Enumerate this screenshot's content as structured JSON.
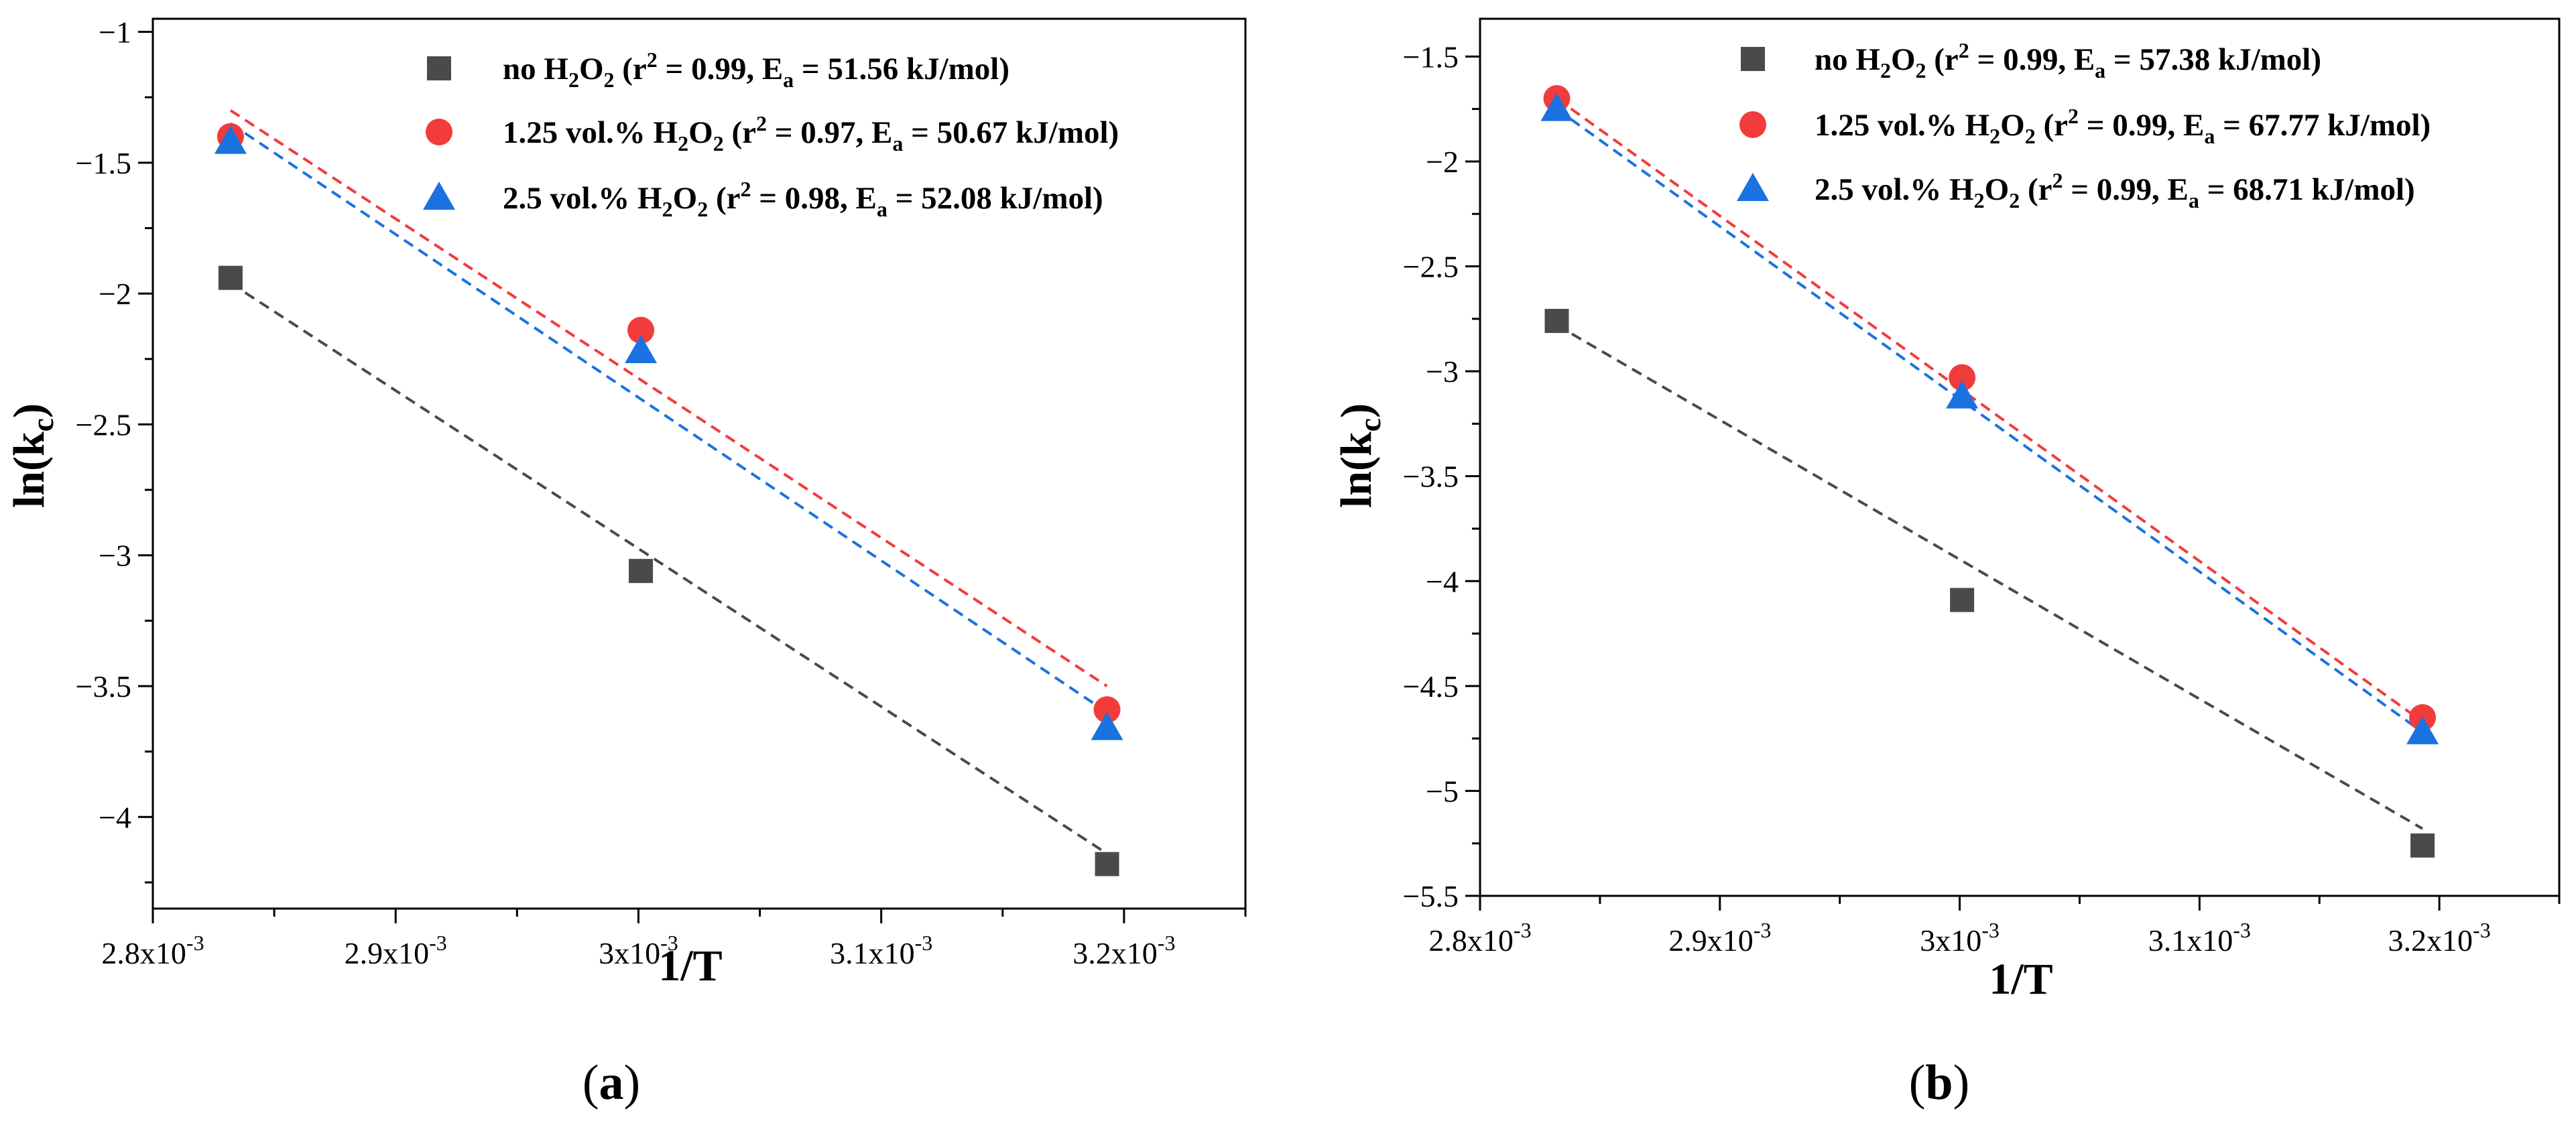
{
  "chart_data": [
    {
      "type": "scatter",
      "panel_label": "a",
      "xlabel": "1/T",
      "ylabel": "ln(kc)",
      "xlim": [
        0.0028,
        0.00325
      ],
      "ylim": [
        -4.35,
        -0.95
      ],
      "x_ticks": [
        0.0028,
        0.0029,
        0.003,
        0.0031,
        0.0032
      ],
      "x_tick_labels": [
        {
          "mantissa": "2.8x10",
          "exp": "-3"
        },
        {
          "mantissa": "2.9x10",
          "exp": "-3"
        },
        {
          "mantissa": "3x10",
          "exp": "-3"
        },
        {
          "mantissa": "3.1x10",
          "exp": "-3"
        },
        {
          "mantissa": "3.2x10",
          "exp": "-3"
        }
      ],
      "y_ticks": [
        -4,
        -3.5,
        -3,
        -2.5,
        -2,
        -1.5,
        -1
      ],
      "y_tick_labels": [
        "−4",
        "−3.5",
        "−3",
        "−2.5",
        "−2",
        "−1.5",
        "−1"
      ],
      "legend_position": "top-right",
      "series": [
        {
          "name": "no H2O2",
          "label": {
            "pre": "no H",
            "s1": "2",
            "mid": "O",
            "s2": "2",
            "r": " (r",
            "sup": "2",
            "eq": " = 0.99, E",
            "sub": "a",
            "post": " = 51.56 kJ/mol)"
          },
          "marker": "square",
          "color": "#4a4a4a",
          "x": [
            0.002832,
            0.003001,
            0.003193
          ],
          "y": [
            -1.94,
            -3.06,
            -4.18
          ],
          "fit": {
            "x": [
              0.002832,
              0.003193
            ],
            "y": [
              -1.96,
              -4.14
            ]
          }
        },
        {
          "name": "1.25 vol.% H2O2",
          "label": {
            "pre": "1.25 vol.% H",
            "s1": "2",
            "mid": "O",
            "s2": "2",
            "r": " (r",
            "sup": "2",
            "eq": " = 0.97, E",
            "sub": "a",
            "post": " = 50.67 kJ/mol)"
          },
          "marker": "circle",
          "color": "#f23b3b",
          "x": [
            0.002832,
            0.003001,
            0.003193
          ],
          "y": [
            -1.4,
            -2.14,
            -3.59
          ],
          "fit": {
            "x": [
              0.002832,
              0.003193
            ],
            "y": [
              -1.3,
              -3.5
            ]
          }
        },
        {
          "name": "2.5 vol.% H2O2",
          "label": {
            "pre": "2.5 vol.% H",
            "s1": "2",
            "mid": "O",
            "s2": "2",
            "r": " (r",
            "sup": "2",
            "eq": " = 0.98, E",
            "sub": "a",
            "post": " = 52.08 kJ/mol)"
          },
          "marker": "triangle",
          "color": "#1a72e0",
          "x": [
            0.002832,
            0.003001,
            0.003193
          ],
          "y": [
            -1.42,
            -2.22,
            -3.66
          ],
          "fit": {
            "x": [
              0.002832,
              0.003193
            ],
            "y": [
              -1.35,
              -3.6
            ]
          }
        }
      ]
    },
    {
      "type": "scatter",
      "panel_label": "b",
      "xlabel": "1/T",
      "ylabel": "ln(kc)",
      "xlim": [
        0.0028,
        0.00325
      ],
      "ylim": [
        -5.5,
        -1.32
      ],
      "x_ticks": [
        0.0028,
        0.0029,
        0.003,
        0.0031,
        0.0032
      ],
      "x_tick_labels": [
        {
          "mantissa": "2.8x10",
          "exp": "-3"
        },
        {
          "mantissa": "2.9x10",
          "exp": "-3"
        },
        {
          "mantissa": "3x10",
          "exp": "-3"
        },
        {
          "mantissa": "3.1x10",
          "exp": "-3"
        },
        {
          "mantissa": "3.2x10",
          "exp": "-3"
        }
      ],
      "y_ticks": [
        -5.5,
        -5,
        -4.5,
        -4,
        -3.5,
        -3,
        -2.5,
        -2,
        -1.5
      ],
      "y_tick_labels": [
        "−5.5",
        "−5",
        "−4.5",
        "−4",
        "−3.5",
        "−3",
        "−2.5",
        "−2",
        "−1.5"
      ],
      "legend_position": "top-right",
      "series": [
        {
          "name": "no H2O2",
          "label": {
            "pre": "no H",
            "s1": "2",
            "mid": "O",
            "s2": "2",
            "r": " (r",
            "sup": "2",
            "eq": " = 0.99, E",
            "sub": "a",
            "post": " = 57.38 kJ/mol)"
          },
          "marker": "square",
          "color": "#4a4a4a",
          "x": [
            0.002832,
            0.003001,
            0.003193
          ],
          "y": [
            -2.76,
            -4.09,
            -5.26
          ],
          "fit": {
            "x": [
              0.002832,
              0.003193
            ],
            "y": [
              -2.78,
              -5.18
            ]
          }
        },
        {
          "name": "1.25 vol.% H2O2",
          "label": {
            "pre": "1.25 vol.% H",
            "s1": "2",
            "mid": "O",
            "s2": "2",
            "r": " (r",
            "sup": "2",
            "eq": " = 0.99, E",
            "sub": "a",
            "post": " = 67.77 kJ/mol)"
          },
          "marker": "circle",
          "color": "#f23b3b",
          "x": [
            0.002832,
            0.003001,
            0.003193
          ],
          "y": [
            -1.7,
            -3.03,
            -4.65
          ],
          "fit": {
            "x": [
              0.002832,
              0.003193
            ],
            "y": [
              -1.7,
              -4.67
            ]
          }
        },
        {
          "name": "2.5 vol.% H2O2",
          "label": {
            "pre": "2.5 vol.% H",
            "s1": "2",
            "mid": "O",
            "s2": "2",
            "r": " (r",
            "sup": "2",
            "eq": " = 0.99, E",
            "sub": "a",
            "post": " =  68.71 kJ/mol)"
          },
          "marker": "triangle",
          "color": "#1a72e0",
          "x": [
            0.002832,
            0.003001,
            0.003193
          ],
          "y": [
            -1.75,
            -3.12,
            -4.72
          ],
          "fit": {
            "x": [
              0.002832,
              0.003193
            ],
            "y": [
              -1.75,
              -4.72
            ]
          }
        }
      ]
    }
  ]
}
